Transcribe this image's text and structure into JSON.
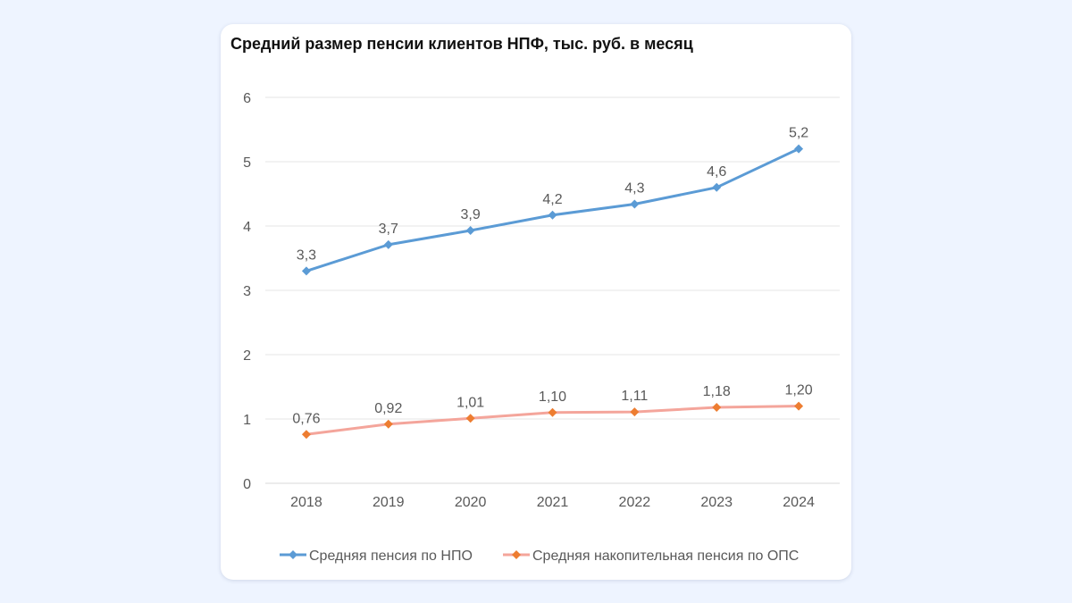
{
  "chart_data": {
    "type": "line",
    "title": "Средний размер пенсии клиентов НПФ, тыс. руб. в месяц",
    "xlabel": "",
    "ylabel": "",
    "categories": [
      "2018",
      "2019",
      "2020",
      "2021",
      "2022",
      "2023",
      "2024"
    ],
    "ylim": [
      0,
      6
    ],
    "yticks": [
      "0",
      "1",
      "2",
      "3",
      "4",
      "5",
      "6"
    ],
    "grid": true,
    "legend_position": "bottom",
    "series": [
      {
        "name": "Средняя пенсия по НПО",
        "values": [
          3.3,
          3.71,
          3.93,
          4.17,
          4.34,
          4.6,
          5.2
        ],
        "labels": [
          "3,3",
          "3,7",
          "3,9",
          "4,2",
          "4,3",
          "4,6",
          "5,2"
        ],
        "line_color": "#5b9bd5",
        "marker_color": "#5b9bd5"
      },
      {
        "name": "Средняя накопительная пенсия по ОПС",
        "values": [
          0.76,
          0.92,
          1.01,
          1.1,
          1.11,
          1.18,
          1.2
        ],
        "labels": [
          "0,76",
          "0,92",
          "1,01",
          "1,10",
          "1,11",
          "1,18",
          "1,20"
        ],
        "line_color": "#f4a59b",
        "marker_color": "#ed7d31"
      }
    ]
  }
}
